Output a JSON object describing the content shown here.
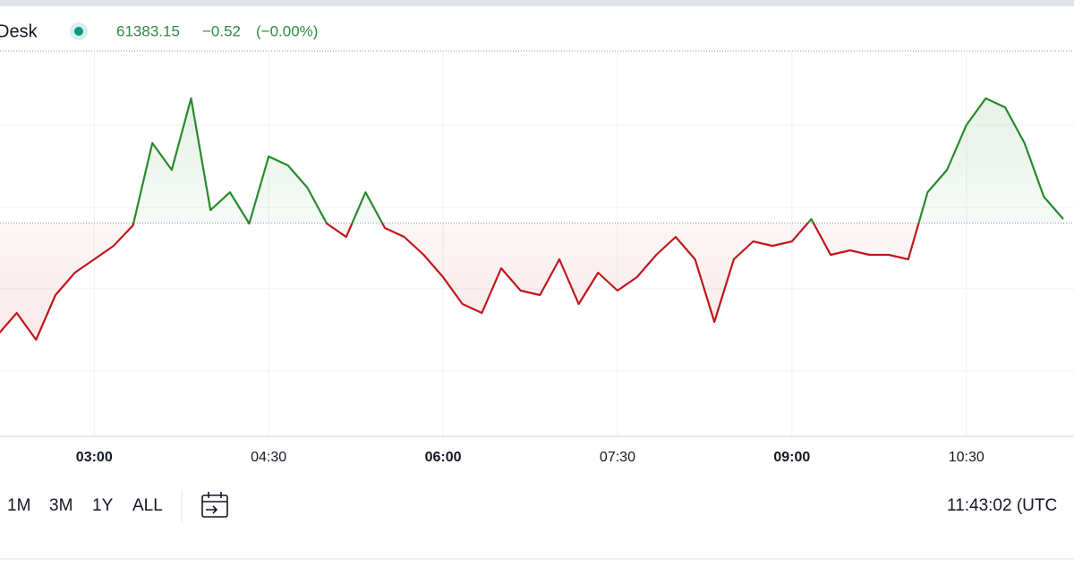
{
  "header": {
    "title": "Desk",
    "price": "61383.15",
    "change": "−0.52",
    "change_pct": "(−0.00%)"
  },
  "chart_data": {
    "type": "line",
    "x": [
      "02:10",
      "02:20",
      "02:30",
      "02:40",
      "02:50",
      "03:00",
      "03:10",
      "03:20",
      "03:30",
      "03:40",
      "03:50",
      "04:00",
      "04:10",
      "04:20",
      "04:30",
      "04:40",
      "04:50",
      "05:00",
      "05:10",
      "05:20",
      "05:30",
      "05:40",
      "05:50",
      "06:00",
      "06:10",
      "06:20",
      "06:30",
      "06:40",
      "06:50",
      "07:00",
      "07:10",
      "07:20",
      "07:30",
      "07:40",
      "07:50",
      "08:00",
      "08:10",
      "08:20",
      "08:30",
      "08:40",
      "08:50",
      "09:00",
      "09:10",
      "09:20",
      "09:30",
      "09:40",
      "09:50",
      "10:00",
      "10:10",
      "10:20",
      "10:30",
      "10:40",
      "10:50",
      "11:00",
      "11:10",
      "11:20"
    ],
    "values": [
      61258,
      61283,
      61253,
      61303,
      61328,
      61343,
      61358,
      61381,
      61473,
      61443,
      61523,
      61398,
      61418,
      61383,
      61458,
      61448,
      61423,
      61383,
      61368,
      61418,
      61378,
      61368,
      61348,
      61323,
      61293,
      61283,
      61333,
      61308,
      61303,
      61343,
      61293,
      61328,
      61308,
      61323,
      61348,
      61368,
      61343,
      61273,
      61343,
      61363,
      61358,
      61363,
      61388,
      61348,
      61353,
      61348,
      61348,
      61343,
      61418,
      61443,
      61493,
      61523,
      61513,
      61473,
      61413,
      61388
    ],
    "baseline": 61383.67,
    "ylim": [
      61145,
      61576
    ],
    "xticks": [
      "03:00",
      "04:30",
      "06:00",
      "07:30",
      "09:00",
      "10:30"
    ],
    "up_color": "#278a2c",
    "down_color": "#c0171c"
  },
  "toolbar": {
    "ranges": [
      "1M",
      "3M",
      "1Y",
      "ALL"
    ],
    "clock": "11:43:02 (UTC"
  }
}
